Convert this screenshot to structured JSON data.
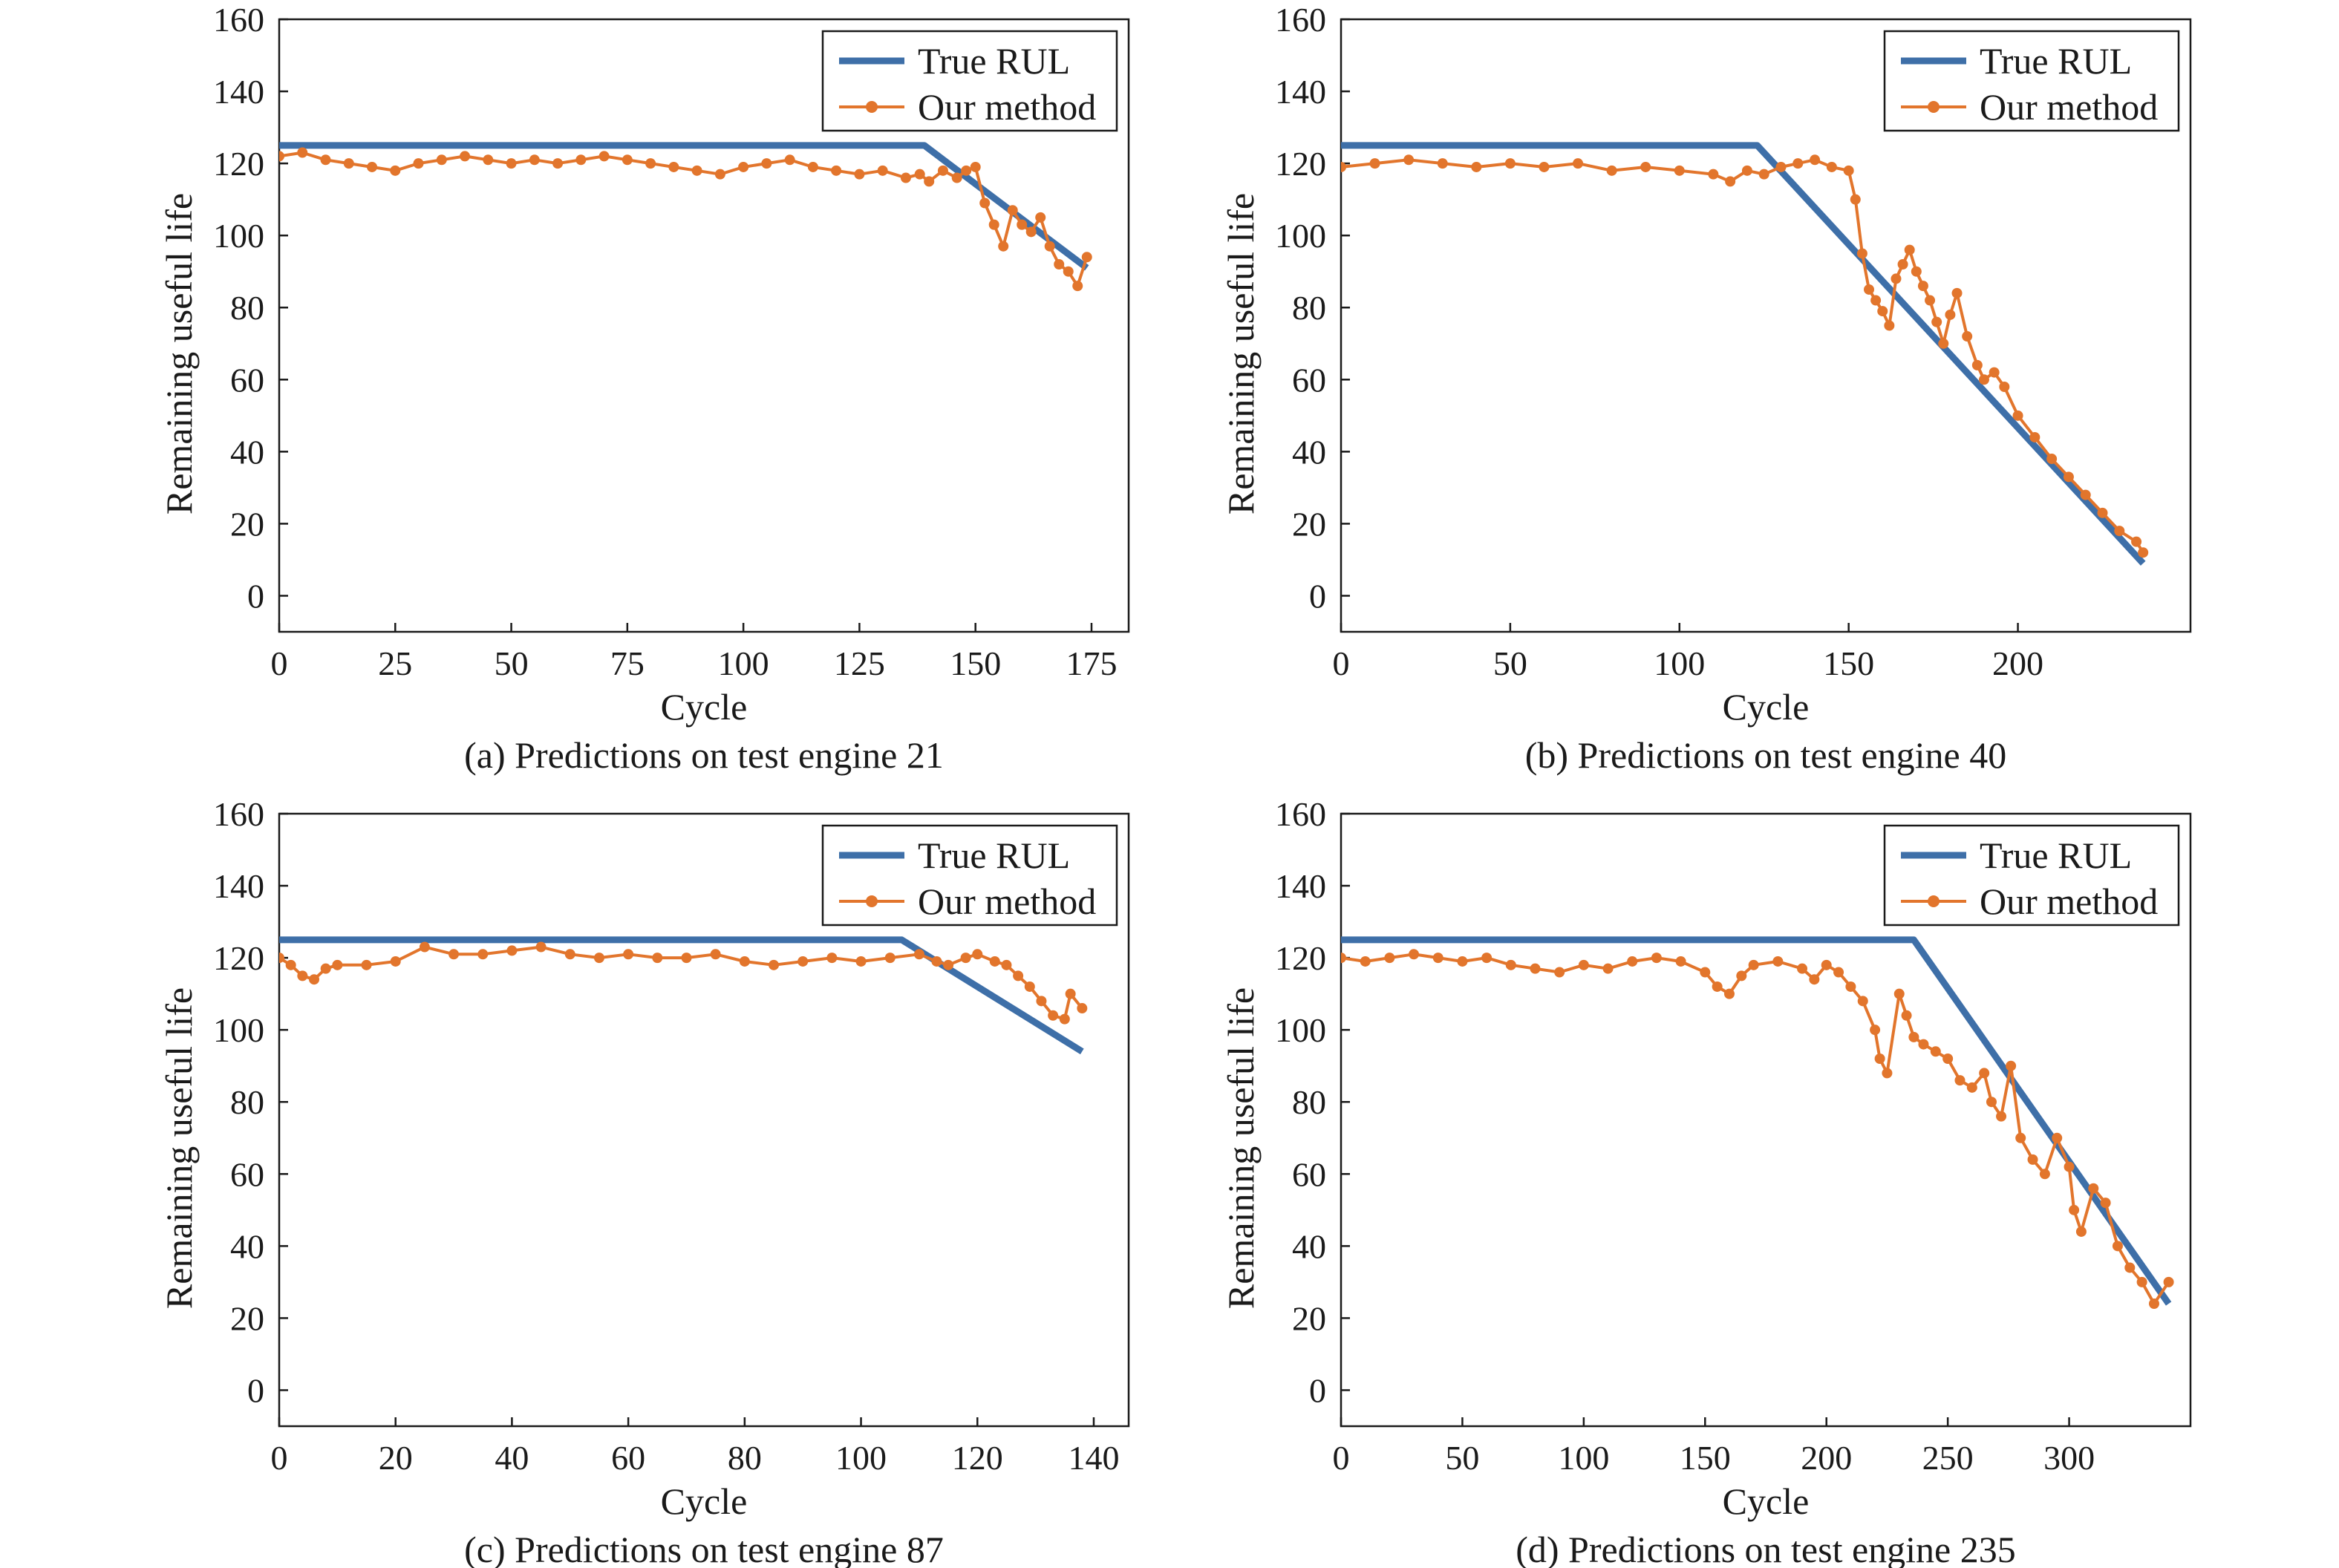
{
  "colors": {
    "true_rul": "#3e6fa8",
    "prediction": "#e2752c",
    "axis": "#1a1a1a"
  },
  "chart_data": [
    {
      "type": "line",
      "caption": "(a) Predictions on test engine 21",
      "xlabel": "Cycle",
      "ylabel": "Remaining useful life",
      "xlim": [
        0,
        183
      ],
      "ylim": [
        -10,
        160
      ],
      "xticks": [
        0,
        25,
        50,
        75,
        100,
        125,
        150,
        175
      ],
      "yticks": [
        0,
        20,
        40,
        60,
        80,
        100,
        120,
        140,
        160
      ],
      "legend_position": "top-right",
      "series": [
        {
          "name": "True RUL",
          "x": [
            0,
            139,
            174
          ],
          "y": [
            125,
            125,
            91
          ]
        },
        {
          "name": "Our method",
          "x": [
            0,
            5,
            10,
            15,
            20,
            25,
            30,
            35,
            40,
            45,
            50,
            55,
            60,
            65,
            70,
            75,
            80,
            85,
            90,
            95,
            100,
            105,
            110,
            115,
            120,
            125,
            130,
            135,
            138,
            140,
            143,
            146,
            148,
            150,
            152,
            154,
            156,
            158,
            160,
            162,
            164,
            166,
            168,
            170,
            172,
            174
          ],
          "y": [
            122,
            123,
            121,
            120,
            119,
            118,
            120,
            121,
            122,
            121,
            120,
            121,
            120,
            121,
            122,
            121,
            120,
            119,
            118,
            117,
            119,
            120,
            121,
            119,
            118,
            117,
            118,
            116,
            117,
            115,
            118,
            116,
            118,
            119,
            109,
            103,
            97,
            107,
            103,
            101,
            105,
            97,
            92,
            90,
            86,
            94
          ]
        }
      ]
    },
    {
      "type": "line",
      "caption": "(b) Predictions on test engine 40",
      "xlabel": "Cycle",
      "ylabel": "Remaining useful life",
      "xlim": [
        0,
        251
      ],
      "ylim": [
        -10,
        160
      ],
      "xticks": [
        0,
        50,
        100,
        150,
        200
      ],
      "yticks": [
        0,
        20,
        40,
        60,
        80,
        100,
        120,
        140,
        160
      ],
      "legend_position": "top-right",
      "series": [
        {
          "name": "True RUL",
          "x": [
            0,
            123,
            237
          ],
          "y": [
            125,
            125,
            9
          ]
        },
        {
          "name": "Our method",
          "x": [
            0,
            10,
            20,
            30,
            40,
            50,
            60,
            70,
            80,
            90,
            100,
            110,
            115,
            120,
            125,
            130,
            135,
            140,
            145,
            150,
            152,
            154,
            156,
            158,
            160,
            162,
            164,
            166,
            168,
            170,
            172,
            174,
            176,
            178,
            180,
            182,
            185,
            188,
            190,
            193,
            196,
            200,
            205,
            210,
            215,
            220,
            225,
            230,
            235,
            237
          ],
          "y": [
            119,
            120,
            121,
            120,
            119,
            120,
            119,
            120,
            118,
            119,
            118,
            117,
            115,
            118,
            117,
            119,
            120,
            121,
            119,
            118,
            110,
            95,
            85,
            82,
            79,
            75,
            88,
            92,
            96,
            90,
            86,
            82,
            76,
            70,
            78,
            84,
            72,
            64,
            60,
            62,
            58,
            50,
            44,
            38,
            33,
            28,
            23,
            18,
            15,
            12
          ]
        }
      ]
    },
    {
      "type": "line",
      "caption": "(c) Predictions on test engine 87",
      "xlabel": "Cycle",
      "ylabel": "Remaining useful life",
      "xlim": [
        0,
        146
      ],
      "ylim": [
        -10,
        160
      ],
      "xticks": [
        0,
        20,
        40,
        60,
        80,
        100,
        120,
        140
      ],
      "yticks": [
        0,
        20,
        40,
        60,
        80,
        100,
        120,
        140,
        160
      ],
      "legend_position": "top-right",
      "series": [
        {
          "name": "True RUL",
          "x": [
            0,
            107,
            138
          ],
          "y": [
            125,
            125,
            94
          ]
        },
        {
          "name": "Our method",
          "x": [
            0,
            2,
            4,
            6,
            8,
            10,
            15,
            20,
            25,
            30,
            35,
            40,
            45,
            50,
            55,
            60,
            65,
            70,
            75,
            80,
            85,
            90,
            95,
            100,
            105,
            110,
            113,
            115,
            118,
            120,
            123,
            125,
            127,
            129,
            131,
            133,
            135,
            136,
            138
          ],
          "y": [
            120,
            118,
            115,
            114,
            117,
            118,
            118,
            119,
            123,
            121,
            121,
            122,
            123,
            121,
            120,
            121,
            120,
            120,
            121,
            119,
            118,
            119,
            120,
            119,
            120,
            121,
            119,
            118,
            120,
            121,
            119,
            118,
            115,
            112,
            108,
            104,
            103,
            110,
            106
          ]
        }
      ]
    },
    {
      "type": "line",
      "caption": "(d) Predictions on test engine 235",
      "xlabel": "Cycle",
      "ylabel": "Remaining useful life",
      "xlim": [
        0,
        350
      ],
      "ylim": [
        -10,
        160
      ],
      "xticks": [
        0,
        50,
        100,
        150,
        200,
        250,
        300
      ],
      "yticks": [
        0,
        20,
        40,
        60,
        80,
        100,
        120,
        140,
        160
      ],
      "legend_position": "top-right",
      "series": [
        {
          "name": "True RUL",
          "x": [
            0,
            236,
            341
          ],
          "y": [
            125,
            125,
            24
          ]
        },
        {
          "name": "Our method",
          "x": [
            0,
            10,
            20,
            30,
            40,
            50,
            60,
            70,
            80,
            90,
            100,
            110,
            120,
            130,
            140,
            150,
            155,
            160,
            165,
            170,
            180,
            190,
            195,
            200,
            205,
            210,
            215,
            220,
            222,
            225,
            230,
            233,
            236,
            240,
            245,
            250,
            255,
            260,
            265,
            268,
            272,
            276,
            280,
            285,
            290,
            295,
            300,
            302,
            305,
            310,
            315,
            320,
            325,
            330,
            335,
            341
          ],
          "y": [
            120,
            119,
            120,
            121,
            120,
            119,
            120,
            118,
            117,
            116,
            118,
            117,
            119,
            120,
            119,
            116,
            112,
            110,
            115,
            118,
            119,
            117,
            114,
            118,
            116,
            112,
            108,
            100,
            92,
            88,
            110,
            104,
            98,
            96,
            94,
            92,
            86,
            84,
            88,
            80,
            76,
            90,
            70,
            64,
            60,
            70,
            62,
            50,
            44,
            56,
            52,
            40,
            34,
            30,
            24,
            30
          ]
        }
      ]
    }
  ]
}
